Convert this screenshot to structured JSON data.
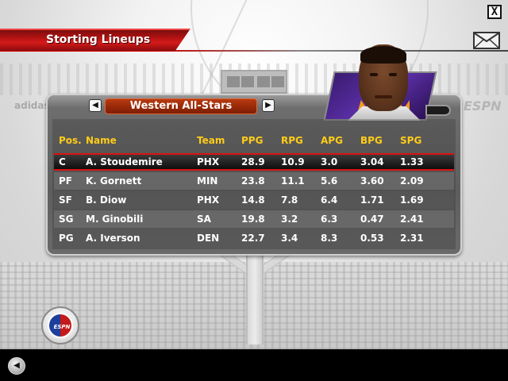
{
  "window": {
    "close_label": "X"
  },
  "header": {
    "title": "Storting Lineups"
  },
  "team_selector": {
    "prev_label": "◀",
    "value": "Western All-Stars",
    "next_label": "▶"
  },
  "background": {
    "sponsor_left": "adidas",
    "sponsor_right": "ESPN"
  },
  "table": {
    "columns": [
      "Pos.",
      "Name",
      "Team",
      "PPG",
      "RPG",
      "APG",
      "BPG",
      "SPG"
    ],
    "rows": [
      {
        "pos": "C",
        "name": "A. Stoudemire",
        "team": "PHX",
        "ppg": "28.9",
        "rpg": "10.9",
        "apg": "3.0",
        "bpg": "3.04",
        "spg": "1.33"
      },
      {
        "pos": "PF",
        "name": "K. Gornett",
        "team": "MIN",
        "ppg": "23.8",
        "rpg": "11.1",
        "apg": "5.6",
        "bpg": "3.60",
        "spg": "2.09"
      },
      {
        "pos": "SF",
        "name": "B. Diow",
        "team": "PHX",
        "ppg": "14.8",
        "rpg": "7.8",
        "apg": "6.4",
        "bpg": "1.71",
        "spg": "1.69"
      },
      {
        "pos": "SG",
        "name": "M. Ginobili",
        "team": "SA",
        "ppg": "19.8",
        "rpg": "3.2",
        "apg": "6.3",
        "bpg": "0.47",
        "spg": "2.41"
      },
      {
        "pos": "PG",
        "name": "A. Iverson",
        "team": "DEN",
        "ppg": "22.7",
        "rpg": "3.4",
        "apg": "8.3",
        "bpg": "0.53",
        "spg": "2.31"
      }
    ],
    "selected_index": 0
  },
  "logo": {
    "label": "ESPN"
  },
  "footer": {
    "back_label": "◀"
  },
  "colors": {
    "accent_red": "#d41a1a",
    "header_yellow": "#ffcc1a",
    "selector_orange": "#9a2a08"
  }
}
